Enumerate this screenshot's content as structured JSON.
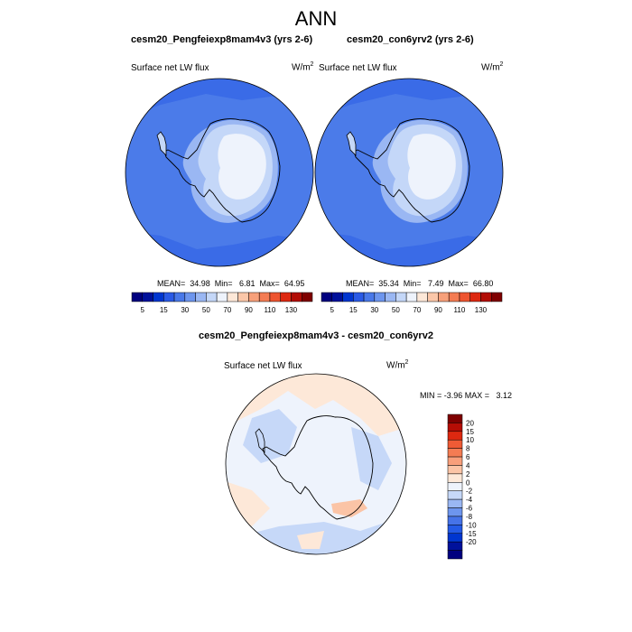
{
  "page_title": "ANN",
  "variable": "Surface net LW flux",
  "units_base": "W/m",
  "units_exp": "2",
  "panels": [
    {
      "case": "cesm20_Pengfeiexp8mam4v3 (yrs 2-6)",
      "stats": "MEAN=  34.98  Min=   6.81  Max=  64.95"
    },
    {
      "case": "cesm20_con6yrv2 (yrs 2-6)",
      "stats": "MEAN=  35.34  Min=   7.49  Max=  66.80"
    }
  ],
  "diff": {
    "title": "cesm20_Pengfeiexp8mam4v3 - cesm20_con6yrv2",
    "stats": "MIN = -3.96 MAX =   3.12"
  },
  "colorbar_abs": {
    "labels": [
      "5",
      "15",
      "30",
      "50",
      "70",
      "90",
      "110",
      "130"
    ],
    "colors": [
      "#00007f",
      "#00119b",
      "#0036d0",
      "#2a5ae6",
      "#4978e9",
      "#6d95ee",
      "#9ab7f3",
      "#c4d7f8",
      "#eef3fc",
      "#fde8d8",
      "#fbc7a9",
      "#f7a07a",
      "#f47c53",
      "#ee5530",
      "#dd2810",
      "#b20d05",
      "#7f0000"
    ]
  },
  "colorbar_diff": {
    "labels": [
      "20",
      "15",
      "10",
      "8",
      "6",
      "4",
      "2",
      "0",
      "-2",
      "-4",
      "-6",
      "-8",
      "-10",
      "-15",
      "-20"
    ],
    "colors": [
      "#7f0000",
      "#b50d05",
      "#dd2810",
      "#ef5b35",
      "#f47c53",
      "#f89f7b",
      "#fbc4a6",
      "#fde8d8",
      "#eef3fc",
      "#c6d8f8",
      "#9ab7f3",
      "#6d95ee",
      "#4673e8",
      "#245ae6",
      "#0036d0",
      "#00119b",
      "#00007f"
    ]
  },
  "map_colors": {
    "ocean_abs": "#4b7be9",
    "ice_low_abs": "#9ab7f3",
    "ice_abs": "#c4d7f8",
    "plateau_abs": "#eef3fc",
    "ocean_warm_abs": "#3a6be7",
    "diff_pos": "#fde8d8",
    "diff_neg": "#c6d8f8",
    "diff_zero": "#eef3fc"
  }
}
